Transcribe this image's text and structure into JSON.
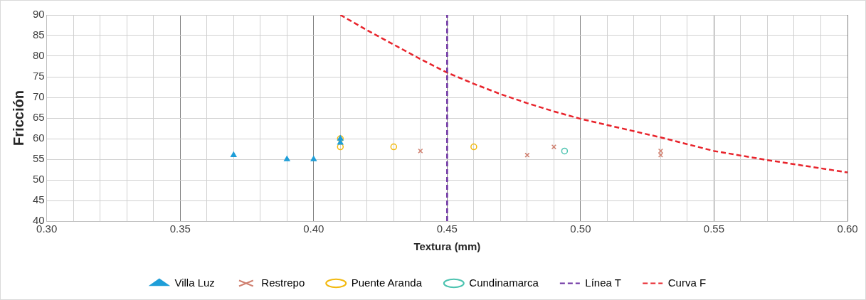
{
  "chart_data": {
    "type": "scatter",
    "xlabel": "Textura (mm)",
    "ylabel": "Fricción",
    "xlim": [
      0.3,
      0.6
    ],
    "ylim": [
      40,
      90
    ],
    "xticks": [
      {
        "value": 0.3,
        "label": "0.30"
      },
      {
        "value": 0.31,
        "label": null
      },
      {
        "value": 0.32,
        "label": null
      },
      {
        "value": 0.33,
        "label": null
      },
      {
        "value": 0.34,
        "label": null
      },
      {
        "value": 0.35,
        "label": "0.35"
      },
      {
        "value": 0.36,
        "label": null
      },
      {
        "value": 0.37,
        "label": null
      },
      {
        "value": 0.38,
        "label": null
      },
      {
        "value": 0.39,
        "label": null
      },
      {
        "value": 0.4,
        "label": "0.40"
      },
      {
        "value": 0.41,
        "label": null
      },
      {
        "value": 0.42,
        "label": null
      },
      {
        "value": 0.43,
        "label": null
      },
      {
        "value": 0.44,
        "label": null
      },
      {
        "value": 0.45,
        "label": "0.45"
      },
      {
        "value": 0.46,
        "label": null
      },
      {
        "value": 0.47,
        "label": null
      },
      {
        "value": 0.48,
        "label": null
      },
      {
        "value": 0.49,
        "label": null
      },
      {
        "value": 0.5,
        "label": "0.50"
      },
      {
        "value": 0.51,
        "label": null
      },
      {
        "value": 0.52,
        "label": null
      },
      {
        "value": 0.53,
        "label": null
      },
      {
        "value": 0.54,
        "label": null
      },
      {
        "value": 0.55,
        "label": "0.55"
      },
      {
        "value": 0.56,
        "label": null
      },
      {
        "value": 0.57,
        "label": null
      },
      {
        "value": 0.58,
        "label": null
      },
      {
        "value": 0.59,
        "label": null
      },
      {
        "value": 0.6,
        "label": "0.60"
      }
    ],
    "yticks": [
      40,
      45,
      50,
      55,
      60,
      65,
      70,
      75,
      80,
      85,
      90
    ],
    "grid": true,
    "legend": "bottom",
    "series": [
      {
        "name": "Villa Luz",
        "type": "scatter",
        "marker": "triangle",
        "color": "#1f9ed8",
        "x": [
          0.37,
          0.39,
          0.4,
          0.41,
          0.41
        ],
        "values": [
          56,
          55,
          55,
          60,
          59
        ]
      },
      {
        "name": "Restrepo",
        "type": "scatter",
        "marker": "cross",
        "color": "#d08070",
        "x": [
          0.44,
          0.48,
          0.49,
          0.53,
          0.53
        ],
        "values": [
          57,
          56,
          58,
          57,
          56
        ]
      },
      {
        "name": "Puente Aranda",
        "type": "scatter",
        "marker": "circle",
        "color": "#f2b90f",
        "x": [
          0.41,
          0.41,
          0.43,
          0.46
        ],
        "values": [
          60,
          58,
          58,
          58
        ]
      },
      {
        "name": "Cundinamarca",
        "type": "scatter",
        "marker": "circle",
        "color": "#4cc3b0",
        "x": [
          0.494
        ],
        "values": [
          57
        ]
      },
      {
        "name": "Línea T",
        "type": "line",
        "marker": "none",
        "line_style": "dashed",
        "color": "#6a2fa0",
        "x": [
          0.45,
          0.45
        ],
        "values": [
          40,
          90
        ]
      },
      {
        "name": "Curva F",
        "type": "line",
        "marker": "none",
        "line_style": "dashed",
        "color": "#e8242c",
        "x": [
          0.41,
          0.42,
          0.43,
          0.44,
          0.45,
          0.46,
          0.47,
          0.48,
          0.49,
          0.5,
          0.52,
          0.53,
          0.55,
          0.57,
          0.6
        ],
        "values": [
          90,
          86.3,
          82.8,
          79.3,
          76,
          73.3,
          70.8,
          68.6,
          66.6,
          64.8,
          61.8,
          60.3,
          57,
          54.8,
          51.8
        ]
      }
    ]
  }
}
